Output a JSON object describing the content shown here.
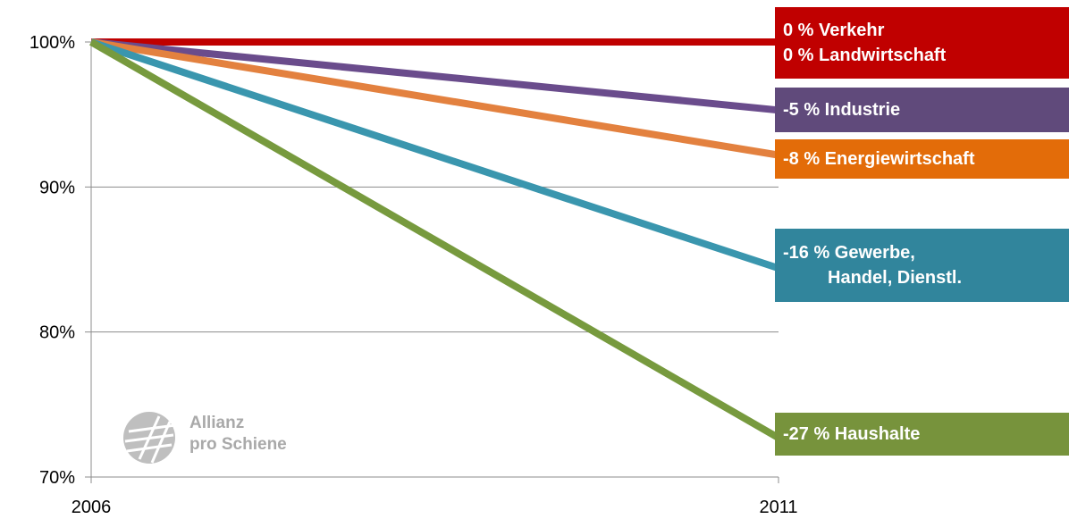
{
  "chart_data": {
    "type": "line",
    "x": [
      "2006",
      "2011"
    ],
    "ylim": [
      70,
      100
    ],
    "yticks": [
      "70%",
      "80%",
      "90%",
      "100%"
    ],
    "ytick_values": [
      70,
      80,
      90,
      100
    ],
    "grid": true,
    "series": [
      {
        "key": "verkehr",
        "values": [
          100,
          100
        ],
        "color": "#c00000"
      },
      {
        "key": "landwirtschaft",
        "values": [
          100,
          100
        ],
        "color": "#c00000"
      },
      {
        "key": "industrie",
        "values": [
          100,
          95.3
        ],
        "color": "#6a4c8c"
      },
      {
        "key": "energiewirtschaft",
        "values": [
          100,
          92.2
        ],
        "color": "#e3813f"
      },
      {
        "key": "gewerbe",
        "values": [
          100,
          84.4
        ],
        "color": "#3a96ae"
      },
      {
        "key": "haushalte",
        "values": [
          100,
          72.7
        ],
        "color": "#779a3e"
      }
    ],
    "labels": [
      {
        "key": "verkehr-landwirtschaft",
        "lines": [
          "0 % Verkehr",
          "0 % Landwirtschaft"
        ],
        "color": "#c00000"
      },
      {
        "key": "industrie",
        "lines": [
          "-5 % Industrie"
        ],
        "color": "#604a7b"
      },
      {
        "key": "energiewirtschaft",
        "lines": [
          "-8 % Energiewirtschaft"
        ],
        "color": "#e36c09"
      },
      {
        "key": "gewerbe",
        "lines": [
          "-16 % Gewerbe,",
          "         Handel, Dienstl."
        ],
        "color": "#31859c"
      },
      {
        "key": "haushalte",
        "lines": [
          "-27 % Haushalte"
        ],
        "color": "#77933c"
      }
    ]
  },
  "logo": {
    "icon": "rail-logo-icon",
    "line1": "Allianz",
    "line2": "pro Schiene"
  }
}
